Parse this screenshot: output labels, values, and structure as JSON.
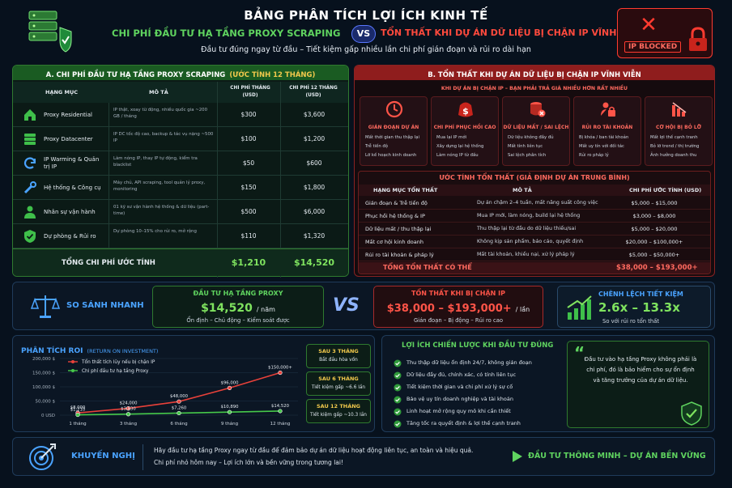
{
  "header": {
    "title": "BẢNG PHÂN TÍCH LỢI ÍCH KINH TẾ",
    "left_heading": "CHI PHÍ ĐẦU TƯ HẠ TẦNG PROXY SCRAPING",
    "vs": "VS",
    "right_heading": "TỔN THẤT KHI DỰ ÁN DỮ LIỆU BỊ CHẶN IP VĨNH VIỄN",
    "subtitle": "Đầu tư đúng ngay từ đầu – Tiết kiệm gấp nhiều lần chi phí gián đoạn và rủi ro dài hạn",
    "blocked_label": "IP BLOCKED"
  },
  "section_a": {
    "title_prefix": "A. CHI PHÍ ĐẦU TƯ HẠ TẦNG PROXY SCRAPING",
    "title_suffix": "(ƯỚC TÍNH 12 THÁNG)",
    "headers": [
      "HẠNG MỤC",
      "MÔ TẢ",
      "CHI PHÍ THÁNG (USD)",
      "CHI PHÍ 12 THÁNG (USD)"
    ],
    "rows": [
      {
        "icon": "house-icon",
        "name": "Proxy Residential",
        "desc": "IP thật, xoay từ động, nhiều quốc gia ~200 GB / tháng",
        "month": "$300",
        "year": "$3,600"
      },
      {
        "icon": "datacenter-icon",
        "name": "Proxy Datacenter",
        "desc": "IP DC tốc độ cao, backup & tác vụ nặng ~500 IP",
        "month": "$100",
        "year": "$1,200"
      },
      {
        "icon": "refresh-icon",
        "name": "IP Warming & Quản trị IP",
        "desc": "Làm nóng IP, thay IP tự động, kiểm tra blacklist",
        "month": "$50",
        "year": "$600"
      },
      {
        "icon": "tools-icon",
        "name": "Hệ thống & Công cụ",
        "desc": "Máy chủ, API scraping, tool quản lý proxy, monitoring",
        "month": "$150",
        "year": "$1,800"
      },
      {
        "icon": "person-icon",
        "name": "Nhân sự vận hành",
        "desc": "01 kỹ sư vận hành hệ thống & dữ liệu (part-time)",
        "month": "$500",
        "year": "$6,000"
      },
      {
        "icon": "shield-check-icon",
        "name": "Dự phòng & Rủi ro",
        "desc": "Dự phòng 10–15% cho rủi ro, mở rộng",
        "month": "$110",
        "year": "$1,320"
      }
    ],
    "total_label": "TỔNG CHI PHÍ ƯỚC TÍNH",
    "total_month": "$1,210",
    "total_year": "$14,520"
  },
  "section_b": {
    "title": "B. TỔN THẤT KHI DỰ ÁN DỮ LIỆU BỊ CHẶN IP VĨNH VIỄN",
    "subtitle": "KHI DỰ ÁN BỊ CHẶN IP – BẠN PHẢI TRẢ GIÁ NHIỀU HƠN RẤT NHIỀU",
    "cards": [
      {
        "icon": "clock-icon",
        "title": "GIÁN ĐOẠN DỰ ÁN",
        "items": [
          "Mất thời gian thu thập lại",
          "Trễ tiến độ",
          "Lỡ kế hoạch kinh doanh"
        ]
      },
      {
        "icon": "money-icon",
        "title": "CHI PHÍ PHỤC HỒI CAO",
        "items": [
          "Mua lại IP mới",
          "Xây dựng lại hệ thống",
          "Làm nóng IP từ đầu"
        ]
      },
      {
        "icon": "database-icon",
        "title": "DỮ LIỆU MẤT / SAI LỆCH",
        "items": [
          "Dữ liệu không đầy đủ",
          "Mất tính liên tục",
          "Sai lệch phân tích"
        ]
      },
      {
        "icon": "lock-icon",
        "title": "RỦI RO TÀI KHOẢN",
        "items": [
          "Bị khóa / ban tài khoản",
          "Mất uy tín với đối tác",
          "Rủi ro pháp lý"
        ]
      },
      {
        "icon": "chart-down-icon",
        "title": "CƠ HỘI BỊ BỎ LỠ",
        "items": [
          "Mất lợi thế cạnh tranh",
          "Bỏ lỡ trend / thị trường",
          "Ảnh hưởng doanh thu"
        ]
      }
    ],
    "loss_title": "ƯỚC TÍNH TỔN THẤT (GIẢ ĐỊNH DỰ ÁN TRUNG BÌNH)",
    "loss_headers": [
      "HẠNG MỤC TỔN THẤT",
      "MÔ TẢ",
      "CHI PHÍ ƯỚC TÍNH (USD)"
    ],
    "loss_rows": [
      {
        "name": "Gián đoạn & Trễ tiến độ",
        "desc": "Dự án chậm 2–4 tuần, mất năng suất công việc",
        "cost": "$5,000 – $15,000"
      },
      {
        "name": "Phục hồi hệ thống & IP",
        "desc": "Mua IP mới, làm nóng, build lại hệ thống",
        "cost": "$3,000 – $8,000"
      },
      {
        "name": "Dữ liệu mất / thu thập lại",
        "desc": "Thu thập lại từ đầu do dữ liệu thiếu/sai",
        "cost": "$5,000 – $20,000"
      },
      {
        "name": "Mất cơ hội kinh doanh",
        "desc": "Không kịp sản phẩm, báo cáo, quyết định",
        "cost": "$20,000 – $100,000+"
      },
      {
        "name": "Rủi ro tài khoản & pháp lý",
        "desc": "Mất tài khoản, khiếu nại, xử lý pháp lý",
        "cost": "$5,000 – $50,000+"
      }
    ],
    "loss_total_label": "TỔNG TỔN THẤT CÓ THỂ",
    "loss_total": "$38,000 – $193,000+"
  },
  "compare": {
    "label": "SO SÁNH NHANH",
    "invest_title": "ĐẦU TƯ HẠ TẦNG PROXY",
    "invest_value": "$14,520",
    "invest_unit": "/ năm",
    "invest_note": "Ổn định – Chủ động – Kiểm soát được",
    "vs": "VS",
    "loss_title": "TỔN THẤT KHI BỊ CHẶN IP",
    "loss_value": "$38,000 – $193,000+",
    "loss_unit": "/ lần",
    "loss_note": "Gián đoạn – Bị động – Rủi ro cao",
    "diff_title": "CHÊNH LỆCH TIẾT KIỆM",
    "diff_value": "2.6x – 13.3x",
    "diff_note": "So với rủi ro tổn thất"
  },
  "roi": {
    "title": "PHÂN TÍCH ROI",
    "title_suffix": "(RETURN ON INVESTMENT)",
    "notes": [
      {
        "title": "SAU 3 THÁNG",
        "text": "Bắt đầu hòa vốn"
      },
      {
        "title": "SAU 6 THÁNG",
        "text": "Tiết kiệm gấp ~6.6 lần"
      },
      {
        "title": "SAU 12 THÁNG",
        "text": "Tiết kiệm gấp ~10.3 lần"
      }
    ]
  },
  "chart_data": {
    "type": "line",
    "x": [
      "1 tháng",
      "3 tháng",
      "6 tháng",
      "9 tháng",
      "12 tháng"
    ],
    "series": [
      {
        "name": "Tổn thất tích lũy nếu bị chặn IP",
        "color": "#e8413a",
        "values": [
          8000,
          24000,
          48000,
          96000,
          150000
        ],
        "labels": [
          "$8,000",
          "$24,000",
          "$48,000",
          "$96,000",
          "$150,000+"
        ]
      },
      {
        "name": "Chi phí đầu tư hạ tầng Proxy",
        "color": "#46c94a",
        "values": [
          1210,
          3630,
          7260,
          10890,
          14520
        ],
        "labels": [
          "$1,210",
          "$3,630",
          "$7,260",
          "$10,890",
          "$14,520"
        ]
      }
    ],
    "ylim": [
      0,
      200000
    ],
    "yticks": [
      "0 USD",
      "50,000 $",
      "100,000 $",
      "150,000 $",
      "200,000 $"
    ],
    "yvalues": [
      0,
      50000,
      100000,
      150000,
      200000
    ],
    "legend": "top-left",
    "grid": true
  },
  "benefits": {
    "title": "LỢI ÍCH CHIẾN LƯỢC KHI ĐẦU TƯ ĐÚNG",
    "items": [
      "Thu thập dữ liệu ổn định 24/7, không gián đoạn",
      "Dữ liệu đầy đủ, chính xác, có tính liên tục",
      "Tiết kiệm thời gian và chi phí xử lý sự cố",
      "Bảo vệ uy tín doanh nghiệp và tài khoản",
      "Linh hoạt mở rộng quy mô khi cần thiết",
      "Tăng tốc ra quyết định & lợi thế cạnh tranh"
    ],
    "quote": "Đầu tư vào hạ tầng Proxy không phải là chi phí, đó là bảo hiểm cho sự ổn định và tăng trưởng của dự án dữ liệu."
  },
  "recommend": {
    "label": "KHUYẾN NGHỊ",
    "line1": "Hãy đầu tư hạ tầng Proxy ngay từ đầu để đảm bảo dự án dữ liệu hoạt động liên tục, an toàn và hiệu quả.",
    "line2": "Chi phí nhỏ hôm nay – Lợi ích lớn và bền vững trong tương lai!",
    "cta": "ĐẦU TƯ THÔNG MINH – DỰ ÁN BỀN VỮNG"
  }
}
